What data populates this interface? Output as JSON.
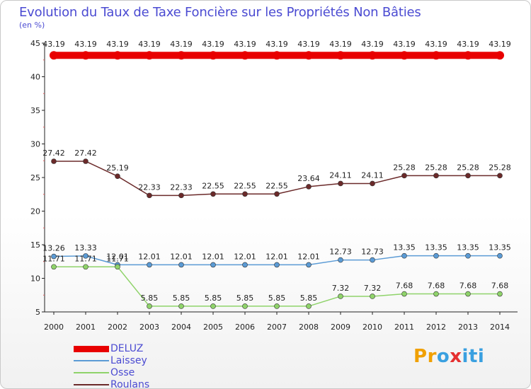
{
  "title": "Evolution du Taux de Taxe Foncière sur les Propriétés Non Bâties",
  "subtitle": "(en %)",
  "logo": {
    "text": "Proxiti",
    "letters": [
      "P",
      "r",
      "o",
      "x",
      "i",
      "t",
      "i"
    ],
    "colors": [
      "#f0a000",
      "#f0a000",
      "#3aa0e0",
      "#e53030",
      "#3aa0e0",
      "#3aa0e0",
      "#3aa0e0"
    ]
  },
  "chart_data": {
    "type": "line",
    "title": "Evolution du Taux de Taxe Foncière sur les Propriétés Non Bâties",
    "ylabel": "(en %)",
    "xlabel": "",
    "ylim": [
      5,
      45
    ],
    "yticks": [
      5,
      10,
      15,
      20,
      25,
      30,
      35,
      40,
      45
    ],
    "categories": [
      "2000",
      "2001",
      "2002",
      "2003",
      "2004",
      "2005",
      "2006",
      "2007",
      "2008",
      "2009",
      "2010",
      "2011",
      "2012",
      "2013",
      "2014"
    ],
    "series": [
      {
        "name": "DELUZ",
        "color": "#e80000",
        "emphasis": true,
        "values": [
          43.19,
          43.19,
          43.19,
          43.19,
          43.19,
          43.19,
          43.19,
          43.19,
          43.19,
          43.19,
          43.19,
          43.19,
          43.19,
          43.19,
          43.19
        ],
        "labels": [
          "43.19",
          "43.19",
          "43.19",
          "43.19",
          "43.19",
          "43.19",
          "43.19",
          "43.19",
          "43.19",
          "43.19",
          "43.19",
          "43.19",
          "43.19",
          "43.19",
          "43.19"
        ]
      },
      {
        "name": "Laissey",
        "color": "#5b9bd5",
        "emphasis": false,
        "values": [
          13.26,
          13.33,
          12.01,
          12.01,
          12.01,
          12.01,
          12.01,
          12.01,
          12.01,
          12.73,
          12.73,
          13.35,
          13.35,
          13.35,
          13.35
        ],
        "labels": [
          "13.26",
          "13.33",
          "12.01",
          "12.01",
          "12.01",
          "12.01",
          "12.01",
          "12.01",
          "12.01",
          "12.73",
          "12.73",
          "13.35",
          "13.35",
          "13.35",
          "13.35"
        ]
      },
      {
        "name": "Osse",
        "color": "#8fd36a",
        "emphasis": false,
        "values": [
          11.71,
          11.71,
          11.71,
          5.85,
          5.85,
          5.85,
          5.85,
          5.85,
          5.85,
          7.32,
          7.32,
          7.68,
          7.68,
          7.68,
          7.68
        ],
        "labels": [
          "11.71",
          "11.71",
          "11.71",
          "5.85",
          "5.85",
          "5.85",
          "5.85",
          "5.85",
          "5.85",
          "7.32",
          "7.32",
          "7.68",
          "7.68",
          "7.68",
          "7.68"
        ]
      },
      {
        "name": "Roulans",
        "color": "#6b2a2a",
        "emphasis": false,
        "values": [
          27.42,
          27.42,
          25.19,
          22.33,
          22.33,
          22.55,
          22.55,
          22.55,
          23.64,
          24.11,
          24.11,
          25.28,
          25.28,
          25.28,
          25.28
        ],
        "labels": [
          "27.42",
          "27.42",
          "25.19",
          "22.33",
          "22.33",
          "22.55",
          "22.55",
          "22.55",
          "23.64",
          "24.11",
          "24.11",
          "25.28",
          "25.28",
          "25.28",
          "25.28"
        ]
      }
    ],
    "legend": [
      "DELUZ",
      "Laissey",
      "Osse",
      "Roulans"
    ]
  }
}
